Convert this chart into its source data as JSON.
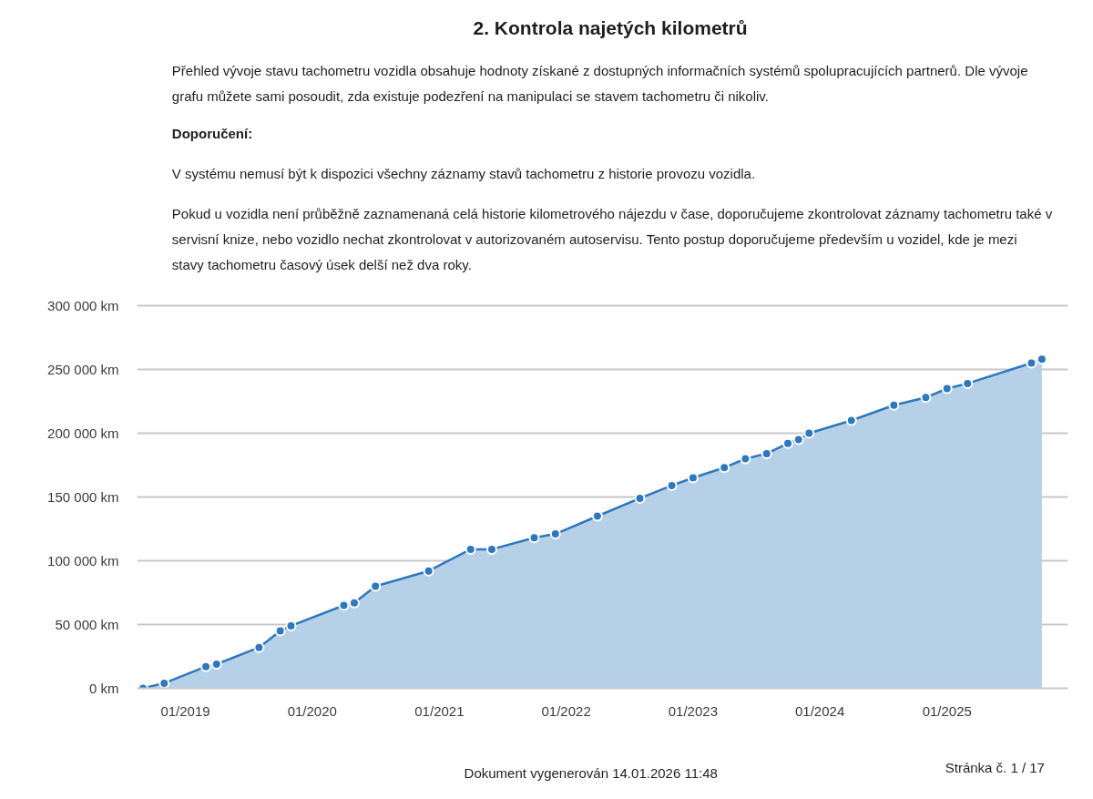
{
  "chart_data": {
    "type": "area",
    "title": "2. Kontrola najetých kilometrů",
    "annotations": [
      "Přehled vývoje stavu tachometru vozidla obsahuje hodnoty získané z dostupných informačních systémů spolupracujících partnerů. Dle vývoje grafu můžete sami posoudit, zda existuje podezření na manipulaci se stavem tachometru či nikoliv.",
      "Doporučení:",
      "V systému nemusí být k dispozici všechny záznamy stavů tachometru z historie provozu vozidla.",
      "Pokud u vozidla není průběžně zaznamenaná celá historie kilometrového nájezdu v čase, doporučujeme zkontrolovat záznamy tachometru také v servisní knize, nebo vozidlo nechat zkontrolovat v autorizovaném autoservisu. Tento postup doporučujeme především u vozidel, kde je mezi stavy tachometru časový úsek delší než dva roky.",
      "Dokument vygenerován 14.01.2026 11:48",
      "Stránka č. 1 / 17"
    ],
    "x": [
      "2018-09",
      "2018-11",
      "2019-03",
      "2019-04",
      "2019-08",
      "2019-10",
      "2019-11",
      "2020-04",
      "2020-05",
      "2020-07",
      "2020-12",
      "2021-04",
      "2021-06",
      "2021-10",
      "2021-12",
      "2022-04",
      "2022-08",
      "2022-11",
      "2023-01",
      "2023-04",
      "2023-06",
      "2023-08",
      "2023-10",
      "2023-11",
      "2023-12",
      "2024-04",
      "2024-08",
      "2024-11",
      "2025-01",
      "2025-03",
      "2025-09",
      "2025-10"
    ],
    "series": [
      {
        "color": "#2e78bd",
        "values": [
          0,
          4000,
          17000,
          19000,
          32000,
          45000,
          49000,
          65000,
          67000,
          80000,
          92000,
          109000,
          109000,
          118000,
          121000,
          135000,
          149000,
          159000,
          165000,
          173000,
          180000,
          184000,
          192000,
          195000,
          200000,
          210000,
          222000,
          228000,
          235000,
          239000,
          255000,
          258000
        ]
      }
    ],
    "xlim": [
      "2018-08-15",
      "2025-12-15"
    ],
    "xticks": [
      {
        "value": "2019-01",
        "label": "01/2019"
      },
      {
        "value": "2020-01",
        "label": "01/2020"
      },
      {
        "value": "2021-01",
        "label": "01/2021"
      },
      {
        "value": "2022-01",
        "label": "01/2022"
      },
      {
        "value": "2023-01",
        "label": "01/2023"
      },
      {
        "value": "2024-01",
        "label": "01/2024"
      },
      {
        "value": "2025-01",
        "label": "01/2025"
      }
    ],
    "ylim": [
      0,
      300000
    ],
    "yticks": [
      {
        "value": 0,
        "label": "0 km"
      },
      {
        "value": 50000,
        "label": "50 000 km"
      },
      {
        "value": 100000,
        "label": "100 000 km"
      },
      {
        "value": 150000,
        "label": "150 000 km"
      },
      {
        "value": 200000,
        "label": "200 000 km"
      },
      {
        "value": 250000,
        "label": "250 000 km"
      },
      {
        "value": 300000,
        "label": "300 000 km"
      }
    ],
    "grid": "y",
    "marker": "circle"
  }
}
